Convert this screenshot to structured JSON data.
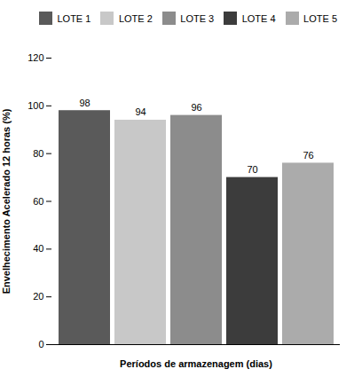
{
  "chart_data": {
    "type": "bar",
    "categories": [
      "LOTE 1",
      "LOTE 2",
      "LOTE 3",
      "LOTE 4",
      "LOTE 5"
    ],
    "values": [
      98,
      94,
      96,
      70,
      76
    ],
    "colors": [
      "#5a5a5a",
      "#c8c8c8",
      "#8c8c8c",
      "#3c3c3c",
      "#ababab"
    ],
    "ylabel": "Envelhecimento Acelerado 12 horas (%)",
    "xlabel": "Períodos de armazenagem (dias)",
    "ylim": [
      0,
      120
    ],
    "yticks": [
      0,
      20,
      40,
      60,
      80,
      100,
      120
    ],
    "grid": false,
    "legend": "upper right",
    "data_labels": true,
    "tick_labels": "y"
  }
}
